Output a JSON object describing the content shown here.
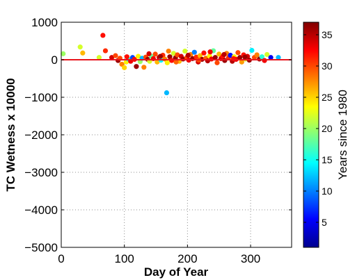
{
  "chart_data": {
    "type": "scatter",
    "xlabel": "Day of Year",
    "ylabel": "TC Wetness x 10000",
    "xlim": [
      0,
      365
    ],
    "ylim": [
      -5000,
      1000
    ],
    "x_ticks": [
      0,
      100,
      200,
      300
    ],
    "y_ticks": [
      1000,
      0,
      -1000,
      -2000,
      -3000,
      -4000,
      -5000
    ],
    "grid": true,
    "reference_line": {
      "y": 0,
      "color": "#e8141d"
    },
    "colorbar": {
      "label": "Years since 1980",
      "range": [
        1,
        37
      ],
      "ticks": [
        5,
        10,
        15,
        20,
        25,
        30,
        35
      ],
      "colormap": "jet"
    },
    "points": [
      {
        "x": 3,
        "y": 160,
        "c": 20
      },
      {
        "x": 30,
        "y": 340,
        "c": 22
      },
      {
        "x": 34,
        "y": 180,
        "c": 26
      },
      {
        "x": 60,
        "y": 60,
        "c": 22
      },
      {
        "x": 66,
        "y": 650,
        "c": 32
      },
      {
        "x": 70,
        "y": 240,
        "c": 31
      },
      {
        "x": 80,
        "y": 60,
        "c": 34
      },
      {
        "x": 86,
        "y": 110,
        "c": 30
      },
      {
        "x": 90,
        "y": -20,
        "c": 36
      },
      {
        "x": 93,
        "y": 40,
        "c": 30
      },
      {
        "x": 96,
        "y": -120,
        "c": 28
      },
      {
        "x": 100,
        "y": -210,
        "c": 25
      },
      {
        "x": 103,
        "y": -60,
        "c": 24
      },
      {
        "x": 106,
        "y": 20,
        "c": 15
      },
      {
        "x": 110,
        "y": -40,
        "c": 33
      },
      {
        "x": 113,
        "y": 60,
        "c": 8
      },
      {
        "x": 116,
        "y": 10,
        "c": 32
      },
      {
        "x": 119,
        "y": -180,
        "c": 36
      },
      {
        "x": 122,
        "y": 90,
        "c": 24
      },
      {
        "x": 125,
        "y": -50,
        "c": 20
      },
      {
        "x": 128,
        "y": 40,
        "c": 12
      },
      {
        "x": 131,
        "y": -200,
        "c": 28
      },
      {
        "x": 134,
        "y": 70,
        "c": 30
      },
      {
        "x": 137,
        "y": 10,
        "c": 36
      },
      {
        "x": 140,
        "y": -40,
        "c": 22
      },
      {
        "x": 143,
        "y": 90,
        "c": 18
      },
      {
        "x": 146,
        "y": 30,
        "c": 33
      },
      {
        "x": 149,
        "y": 150,
        "c": 30
      },
      {
        "x": 152,
        "y": -60,
        "c": 26
      },
      {
        "x": 155,
        "y": 60,
        "c": 34
      },
      {
        "x": 158,
        "y": -10,
        "c": 14
      },
      {
        "x": 161,
        "y": 120,
        "c": 31
      },
      {
        "x": 164,
        "y": 20,
        "c": 28
      },
      {
        "x": 167,
        "y": -880,
        "c": 12
      },
      {
        "x": 168,
        "y": -80,
        "c": 24
      },
      {
        "x": 170,
        "y": 230,
        "c": 28
      },
      {
        "x": 172,
        "y": 80,
        "c": 36
      },
      {
        "x": 175,
        "y": -20,
        "c": 32
      },
      {
        "x": 178,
        "y": 170,
        "c": 22
      },
      {
        "x": 181,
        "y": 50,
        "c": 36
      },
      {
        "x": 184,
        "y": 130,
        "c": 30
      },
      {
        "x": 187,
        "y": -40,
        "c": 26
      },
      {
        "x": 190,
        "y": 90,
        "c": 34
      },
      {
        "x": 193,
        "y": 20,
        "c": 36
      },
      {
        "x": 196,
        "y": 230,
        "c": 22
      },
      {
        "x": 199,
        "y": 60,
        "c": 30
      },
      {
        "x": 202,
        "y": -10,
        "c": 33
      },
      {
        "x": 205,
        "y": 140,
        "c": 28
      },
      {
        "x": 208,
        "y": 30,
        "c": 36
      },
      {
        "x": 211,
        "y": 200,
        "c": 10
      },
      {
        "x": 214,
        "y": 70,
        "c": 31
      },
      {
        "x": 217,
        "y": -60,
        "c": 34
      },
      {
        "x": 220,
        "y": 110,
        "c": 26
      },
      {
        "x": 223,
        "y": 10,
        "c": 36
      },
      {
        "x": 226,
        "y": 180,
        "c": 32
      },
      {
        "x": 229,
        "y": 40,
        "c": 29
      },
      {
        "x": 232,
        "y": -30,
        "c": 35
      },
      {
        "x": 235,
        "y": 100,
        "c": 24
      },
      {
        "x": 238,
        "y": 20,
        "c": 33
      },
      {
        "x": 241,
        "y": 240,
        "c": 18
      },
      {
        "x": 244,
        "y": 60,
        "c": 36
      },
      {
        "x": 247,
        "y": -80,
        "c": 30
      },
      {
        "x": 250,
        "y": 150,
        "c": 26
      },
      {
        "x": 253,
        "y": 30,
        "c": 34
      },
      {
        "x": 256,
        "y": 90,
        "c": 32
      },
      {
        "x": 259,
        "y": -20,
        "c": 36
      },
      {
        "x": 262,
        "y": 170,
        "c": 28
      },
      {
        "x": 265,
        "y": 50,
        "c": 31
      },
      {
        "x": 268,
        "y": 120,
        "c": 6
      },
      {
        "x": 271,
        "y": -40,
        "c": 35
      },
      {
        "x": 274,
        "y": 80,
        "c": 24
      },
      {
        "x": 277,
        "y": 10,
        "c": 33
      },
      {
        "x": 280,
        "y": 190,
        "c": 30
      },
      {
        "x": 283,
        "y": 60,
        "c": 36
      },
      {
        "x": 286,
        "y": -60,
        "c": 27
      },
      {
        "x": 289,
        "y": 130,
        "c": 32
      },
      {
        "x": 292,
        "y": 20,
        "c": 22
      },
      {
        "x": 295,
        "y": 90,
        "c": 34
      },
      {
        "x": 298,
        "y": -10,
        "c": 36
      },
      {
        "x": 302,
        "y": 250,
        "c": 14
      },
      {
        "x": 306,
        "y": 60,
        "c": 30
      },
      {
        "x": 310,
        "y": 130,
        "c": 28
      },
      {
        "x": 314,
        "y": 20,
        "c": 36
      },
      {
        "x": 318,
        "y": 80,
        "c": 16
      },
      {
        "x": 322,
        "y": -20,
        "c": 33
      },
      {
        "x": 326,
        "y": 140,
        "c": 22
      },
      {
        "x": 332,
        "y": 60,
        "c": 5
      },
      {
        "x": 344,
        "y": 60,
        "c": 12
      },
      {
        "x": 104,
        "y": 80,
        "c": 32
      },
      {
        "x": 139,
        "y": 160,
        "c": 34
      },
      {
        "x": 157,
        "y": 90,
        "c": 36
      },
      {
        "x": 182,
        "y": -60,
        "c": 29
      },
      {
        "x": 201,
        "y": 120,
        "c": 35
      },
      {
        "x": 218,
        "y": -10,
        "c": 30
      },
      {
        "x": 236,
        "y": 210,
        "c": 33
      },
      {
        "x": 258,
        "y": 140,
        "c": 35
      },
      {
        "x": 273,
        "y": 30,
        "c": 32
      },
      {
        "x": 291,
        "y": 70,
        "c": 36
      }
    ]
  }
}
